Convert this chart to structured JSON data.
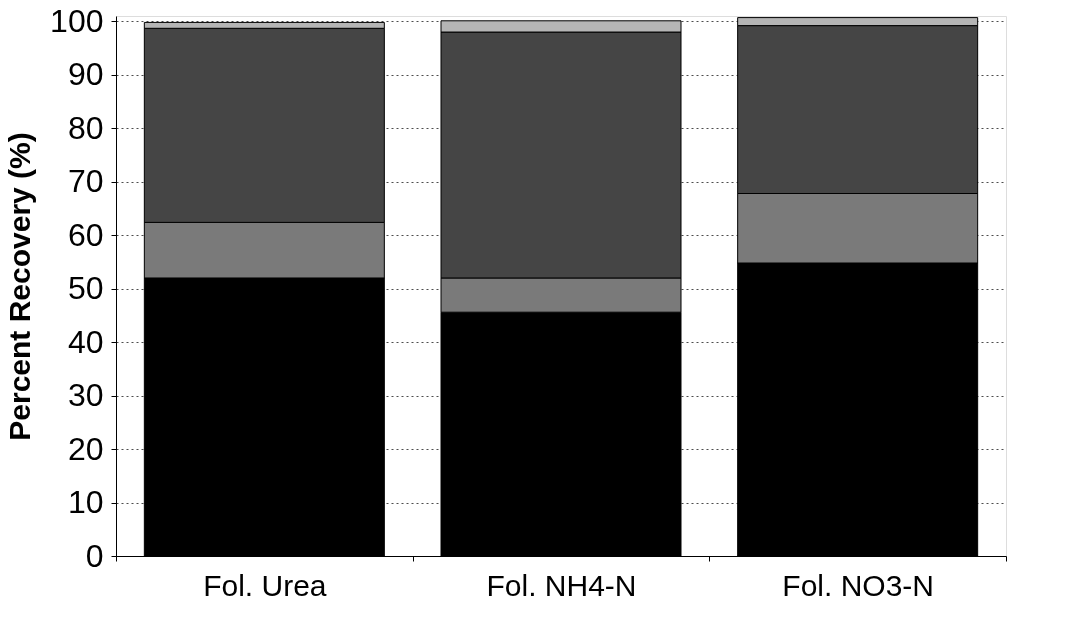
{
  "chart_data": {
    "type": "bar",
    "ylabel": "Percent Recovery (%)",
    "categories": [
      "Fol. Urea",
      "Fol. NH4-N",
      "Fol. NO3-N"
    ],
    "stacked": true,
    "series": [
      {
        "color": "#000000",
        "values": [
          52,
          45.6,
          54.8
        ]
      },
      {
        "color": "#7a7a7a",
        "values": [
          10.4,
          6.4,
          13
        ]
      },
      {
        "color": "#454545",
        "values": [
          36.3,
          46,
          31.4
        ]
      },
      {
        "color": "#b5b5b5",
        "values": [
          1.1,
          2.1,
          1.5
        ]
      }
    ],
    "ylim": [
      0,
      101
    ],
    "yticks": [
      0,
      10,
      20,
      30,
      40,
      50,
      60,
      70,
      80,
      90,
      100
    ],
    "grid": "y",
    "legend": false
  }
}
